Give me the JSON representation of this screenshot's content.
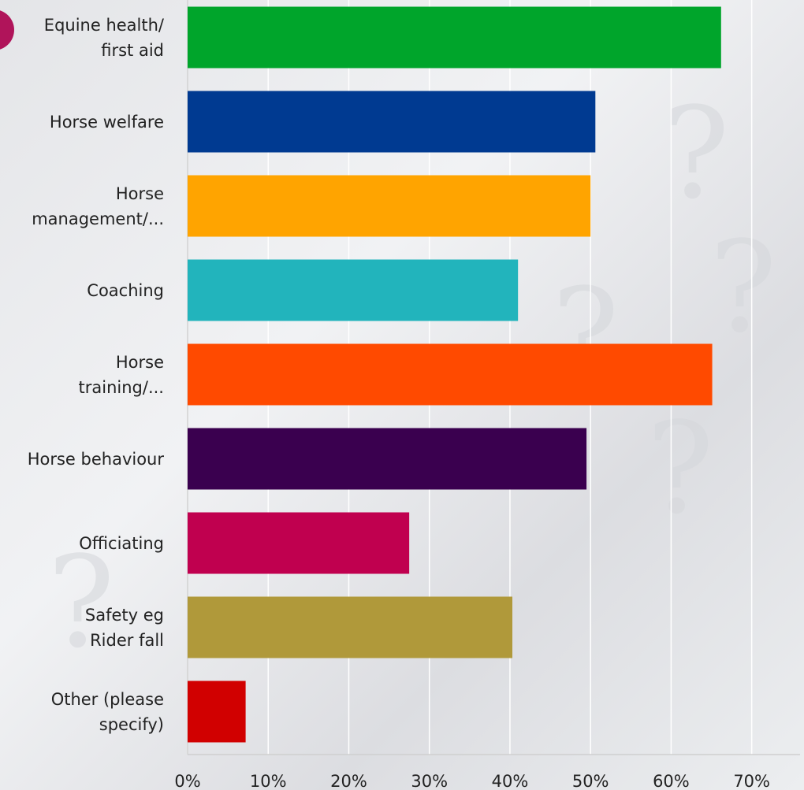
{
  "chart_data": {
    "type": "barh",
    "categories": [
      "Equine health/\nfirst aid",
      "Horse welfare",
      "Horse\nmanagement/...",
      "Coaching",
      "Horse\ntraining/...",
      "Horse behaviour",
      "Officiating",
      "Safety eg\nRider fall",
      "Other (please\nspecify)"
    ],
    "values": [
      66.2,
      50.6,
      50.0,
      41.0,
      65.1,
      49.5,
      27.5,
      40.3,
      7.2
    ],
    "colors": [
      "#00a52b",
      "#003a91",
      "#ffa400",
      "#22b4bc",
      "#ff4a00",
      "#3a004f",
      "#c0004f",
      "#b0993a",
      "#d10000"
    ],
    "xlim": [
      0,
      76
    ],
    "xticks": [
      {
        "value": 0,
        "label": "0%"
      },
      {
        "value": 10,
        "label": "10%"
      },
      {
        "value": 20,
        "label": "20%"
      },
      {
        "value": 30,
        "label": "30%"
      },
      {
        "value": 40,
        "label": "40%"
      },
      {
        "value": 50,
        "label": "50%"
      },
      {
        "value": 60,
        "label": "60%"
      },
      {
        "value": 70,
        "label": "70%"
      }
    ],
    "grid": true
  }
}
